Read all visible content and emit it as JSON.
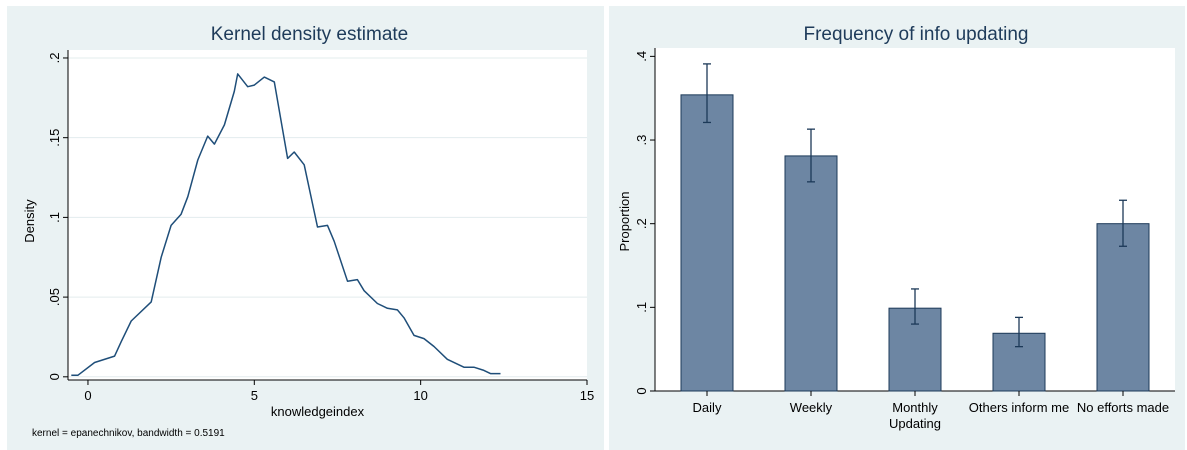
{
  "colors": {
    "panel_bg": "#eaf2f3",
    "plot_bg": "#ffffff",
    "line": "#1f4e79",
    "bar_fill": "#6d86a3",
    "bar_edge": "#1c3958",
    "title": "#1e3b5a"
  },
  "chart_data": [
    {
      "type": "line",
      "title": "Kernel density estimate",
      "xlabel": "knowledgeindex",
      "ylabel": "Density",
      "note": "kernel = epanechnikov, bandwidth = 0.5191",
      "xlim": [
        -0.6,
        15.0
      ],
      "ylim": [
        -0.002,
        0.205
      ],
      "xticks": [
        0,
        5,
        10,
        15
      ],
      "xtick_labels": [
        "0",
        "5",
        "10",
        "15"
      ],
      "yticks": [
        0,
        0.05,
        0.1,
        0.15,
        0.2
      ],
      "ytick_labels": [
        "0",
        ".05",
        ".1",
        ".15",
        ".2"
      ],
      "grid": true,
      "series": [
        {
          "x": [
            -0.5,
            -0.3,
            0.2,
            0.8,
            1.0,
            1.3,
            1.9,
            2.2,
            2.5,
            2.8,
            3.0,
            3.3,
            3.6,
            3.8,
            4.1,
            4.4,
            4.5,
            4.8,
            5.0,
            5.3,
            5.6,
            6.0,
            6.2,
            6.5,
            6.9,
            7.2,
            7.4,
            7.8,
            8.1,
            8.3,
            8.7,
            9.0,
            9.3,
            9.5,
            9.8,
            10.1,
            10.4,
            10.8,
            11.3,
            11.6,
            11.9,
            12.1,
            12.4
          ],
          "y": [
            0.001,
            0.001,
            0.009,
            0.013,
            0.022,
            0.035,
            0.047,
            0.075,
            0.095,
            0.102,
            0.113,
            0.136,
            0.151,
            0.146,
            0.158,
            0.179,
            0.19,
            0.182,
            0.183,
            0.188,
            0.185,
            0.137,
            0.141,
            0.133,
            0.094,
            0.095,
            0.085,
            0.06,
            0.061,
            0.054,
            0.046,
            0.043,
            0.042,
            0.037,
            0.026,
            0.024,
            0.019,
            0.011,
            0.006,
            0.006,
            0.004,
            0.002,
            0.002
          ]
        }
      ]
    },
    {
      "type": "bar",
      "title": "Frequency of info updating",
      "xlabel": "",
      "ylabel": "Proportion",
      "categories": [
        "Daily",
        "Weekly",
        "Monthly Updating",
        "Others inform me",
        "No efforts made"
      ],
      "category_lines": [
        [
          "Daily"
        ],
        [
          "Weekly"
        ],
        [
          "Monthly",
          "Updating"
        ],
        [
          "Others inform me"
        ],
        [
          "No efforts made"
        ]
      ],
      "values": [
        0.354,
        0.281,
        0.099,
        0.069,
        0.2
      ],
      "err_low": [
        0.321,
        0.25,
        0.08,
        0.053,
        0.173
      ],
      "err_high": [
        0.391,
        0.313,
        0.122,
        0.088,
        0.228
      ],
      "ylim": [
        0,
        0.41
      ],
      "yticks": [
        0,
        0.1,
        0.2,
        0.3,
        0.4
      ],
      "ytick_labels": [
        "0",
        ".1",
        ".2",
        ".3",
        ".4"
      ],
      "grid": false
    }
  ]
}
